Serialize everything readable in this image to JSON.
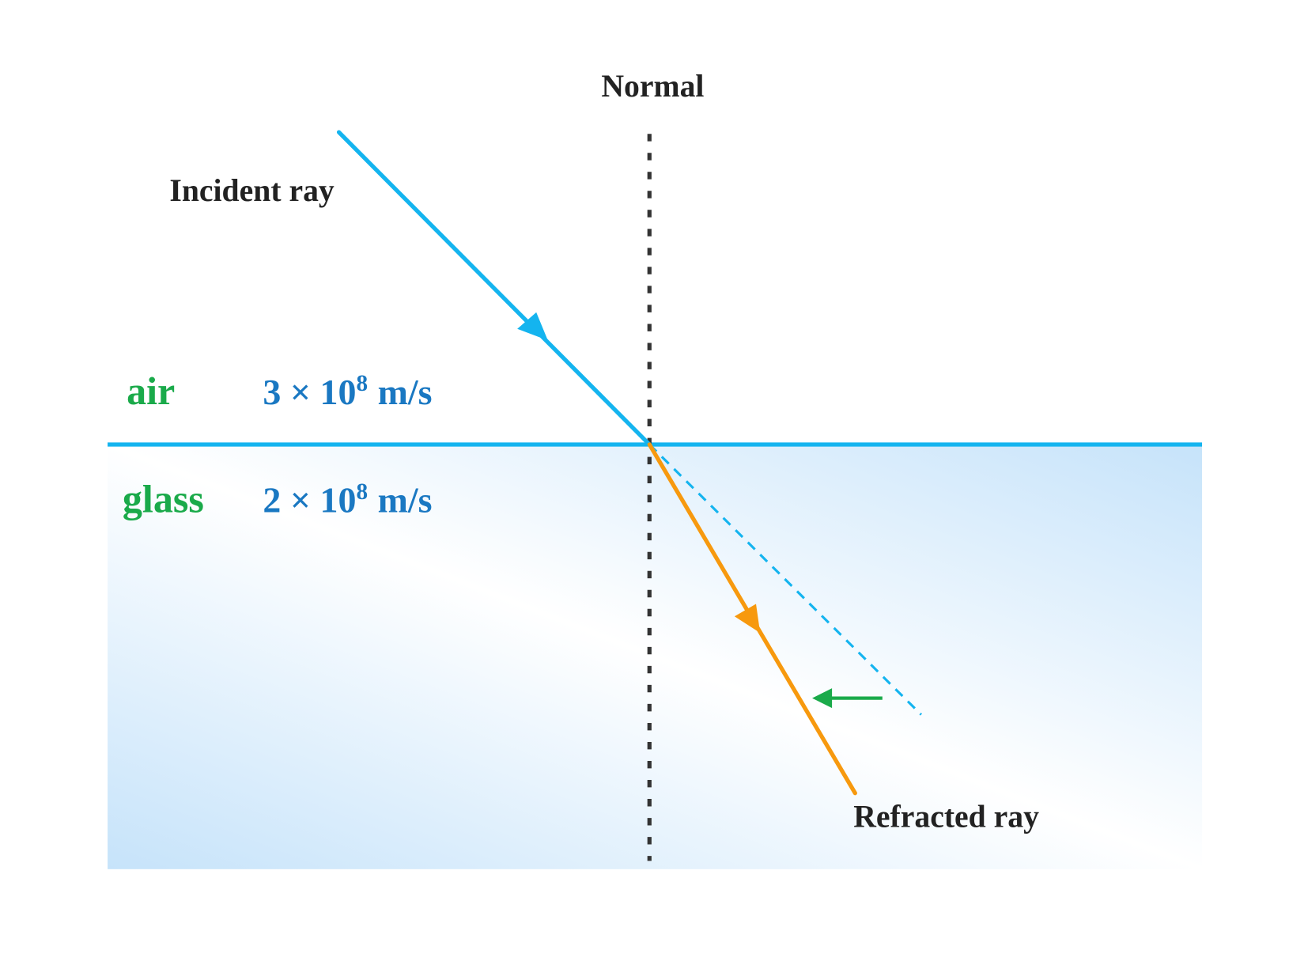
{
  "normal_label": "Normal",
  "incident_label": "Incident ray",
  "refracted_label": "Refracted ray",
  "media": [
    {
      "name": "air",
      "speed": "3 × 10",
      "exponent": "8",
      "unit": "m/s"
    },
    {
      "name": "glass",
      "speed": "2 × 10",
      "exponent": "8",
      "unit": "m/s"
    }
  ]
}
